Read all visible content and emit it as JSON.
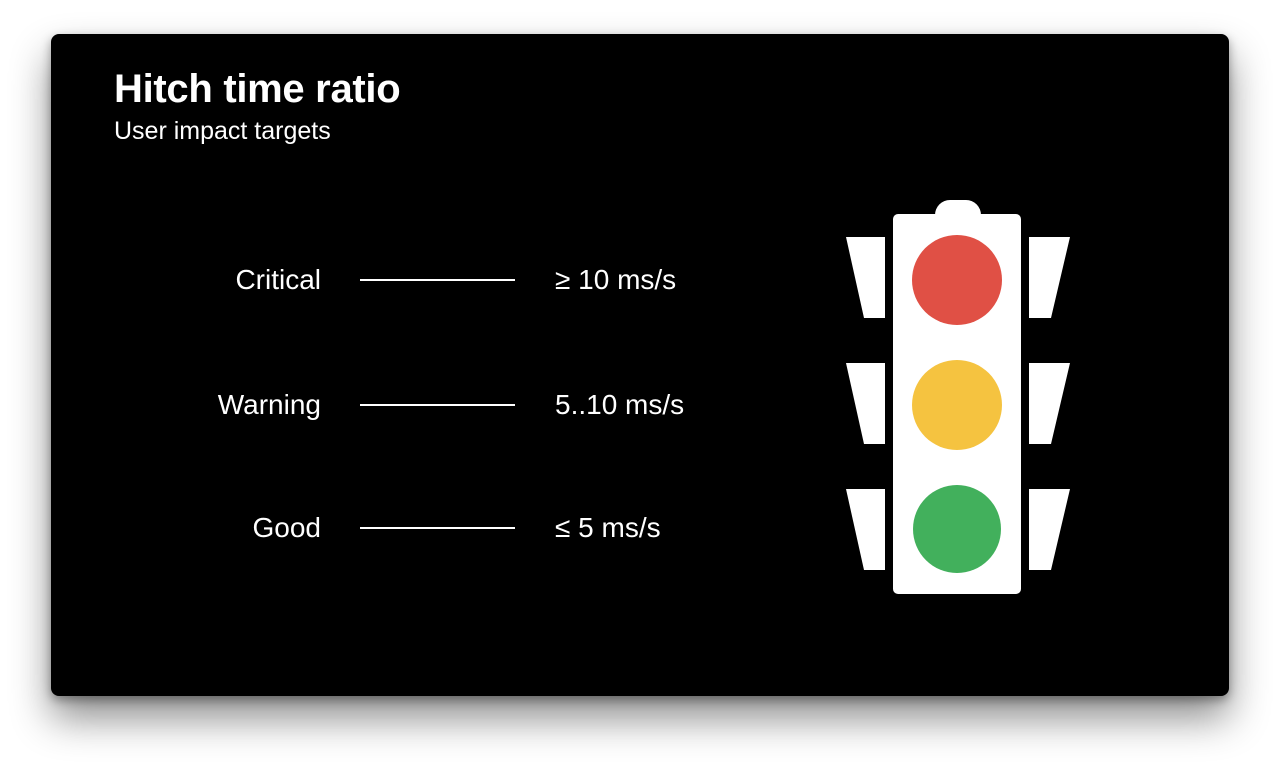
{
  "slide": {
    "title": "Hitch time ratio",
    "subtitle": "User impact targets"
  },
  "levels": [
    {
      "label": "Critical",
      "value": "≥ 10 ms/s",
      "color": "#E05045"
    },
    {
      "label": "Warning",
      "value": "5..10 ms/s",
      "color": "#F5C340"
    },
    {
      "label": "Good",
      "value": "≤ 5 ms/s",
      "color": "#42B05C"
    }
  ],
  "traffic_light": {
    "icon": "traffic-light-icon",
    "body_color": "#FFFFFF"
  }
}
